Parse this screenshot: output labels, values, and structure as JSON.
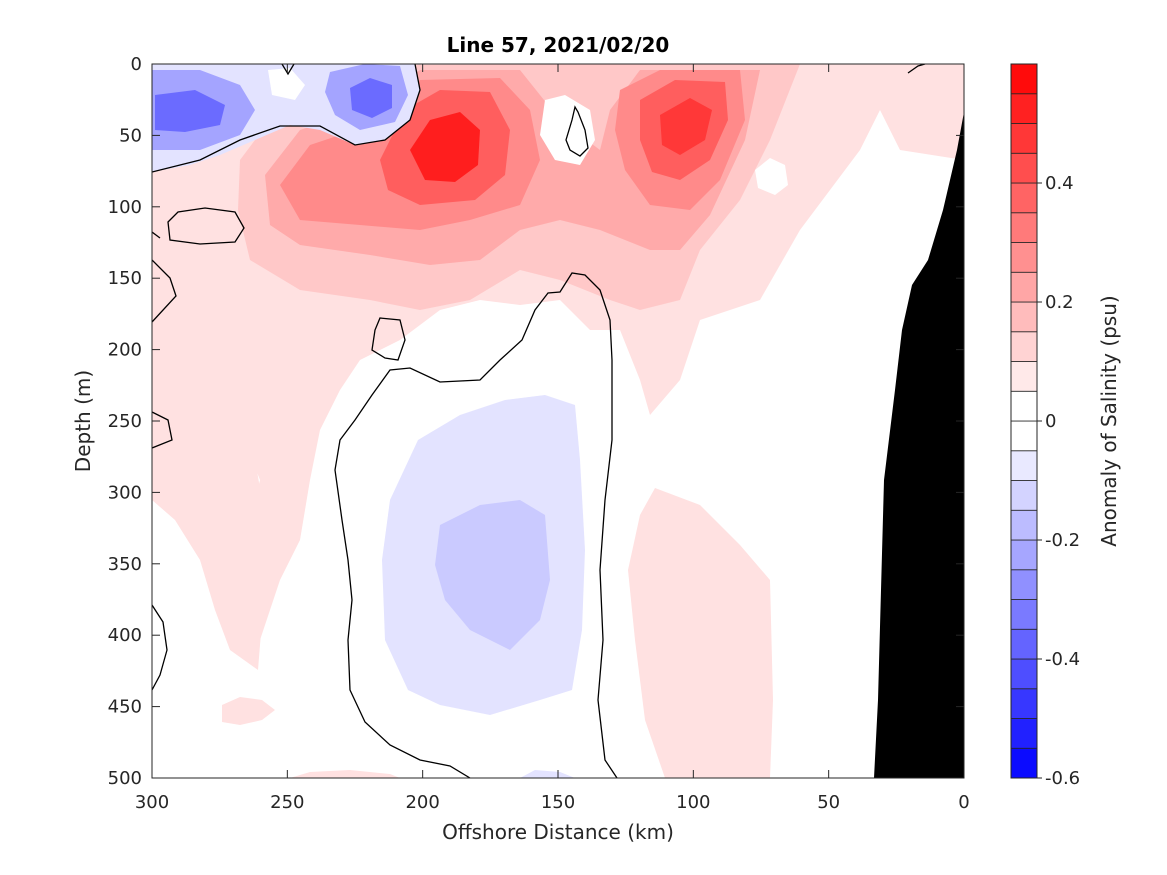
{
  "chart_data": {
    "type": "heatmap",
    "title": "Line 57, 2021/02/20",
    "xlabel": "Offshore Distance (km)",
    "ylabel": "Depth (m)",
    "xlim": [
      300,
      0
    ],
    "ylim": [
      0,
      500
    ],
    "x_reversed": true,
    "y_reversed": true,
    "x_ticks": [
      300,
      250,
      200,
      150,
      100,
      50,
      0
    ],
    "y_ticks": [
      0,
      50,
      100,
      150,
      200,
      250,
      300,
      350,
      400,
      450,
      500
    ],
    "colorbar": {
      "label": "Anomaly of Salinity (psu)",
      "range": [
        -0.6,
        0.6
      ],
      "ticks": [
        -0.6,
        -0.4,
        -0.2,
        0,
        0.2,
        0.4
      ],
      "levels": [
        -0.6,
        -0.55,
        -0.5,
        -0.45,
        -0.4,
        -0.35,
        -0.3,
        -0.25,
        -0.2,
        -0.15,
        -0.1,
        -0.05,
        0,
        0.05,
        0.1,
        0.15,
        0.2,
        0.25,
        0.3,
        0.35,
        0.4,
        0.45,
        0.5,
        0.55,
        0.6
      ],
      "colormap": "blue-white-red",
      "negative_color": "#0000ff",
      "positive_color": "#ff0000"
    },
    "contour_level": 0,
    "bathymetry_color": "#000000",
    "features": [
      {
        "kind": "negative anomaly",
        "x_km": 285,
        "depth_m": 35,
        "value": -0.3
      },
      {
        "kind": "negative anomaly",
        "x_km": 220,
        "depth_m": 25,
        "value": -0.35
      },
      {
        "kind": "positive anomaly",
        "x_km": 190,
        "depth_m": 70,
        "value": 0.6
      },
      {
        "kind": "positive anomaly",
        "x_km": 100,
        "depth_m": 45,
        "value": 0.45
      },
      {
        "kind": "negative anomaly",
        "x_km": 165,
        "depth_m": 340,
        "value": -0.1
      }
    ]
  }
}
